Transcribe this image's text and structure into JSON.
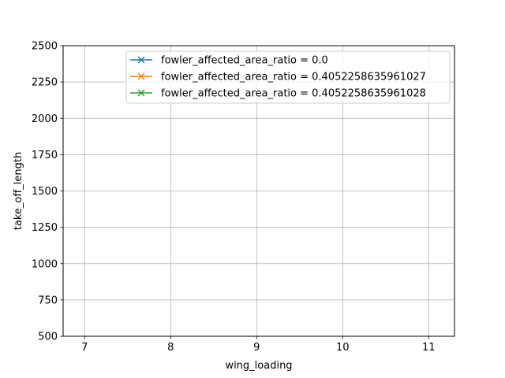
{
  "chart_data": {
    "type": "line",
    "title": "",
    "xlabel": "wing_loading",
    "ylabel": "take_off_length",
    "xlim": [
      6.75,
      11.3
    ],
    "ylim": [
      500,
      2500
    ],
    "x_ticks": [
      7,
      8,
      9,
      10,
      11
    ],
    "y_ticks": [
      500,
      750,
      1000,
      1250,
      1500,
      1750,
      2000,
      2250,
      2500
    ],
    "grid": true,
    "legend_position": "top-center",
    "marker": "x",
    "series": [
      {
        "name": "fowler_affected_area_ratio = 0.0",
        "color": "#1f77b4",
        "x": [],
        "y": []
      },
      {
        "name": "fowler_affected_area_ratio = 0.4052258635961027",
        "color": "#ff7f0e",
        "x": [],
        "y": []
      },
      {
        "name": "fowler_affected_area_ratio = 0.4052258635961028",
        "color": "#2ca02c",
        "x": [],
        "y": []
      }
    ]
  }
}
